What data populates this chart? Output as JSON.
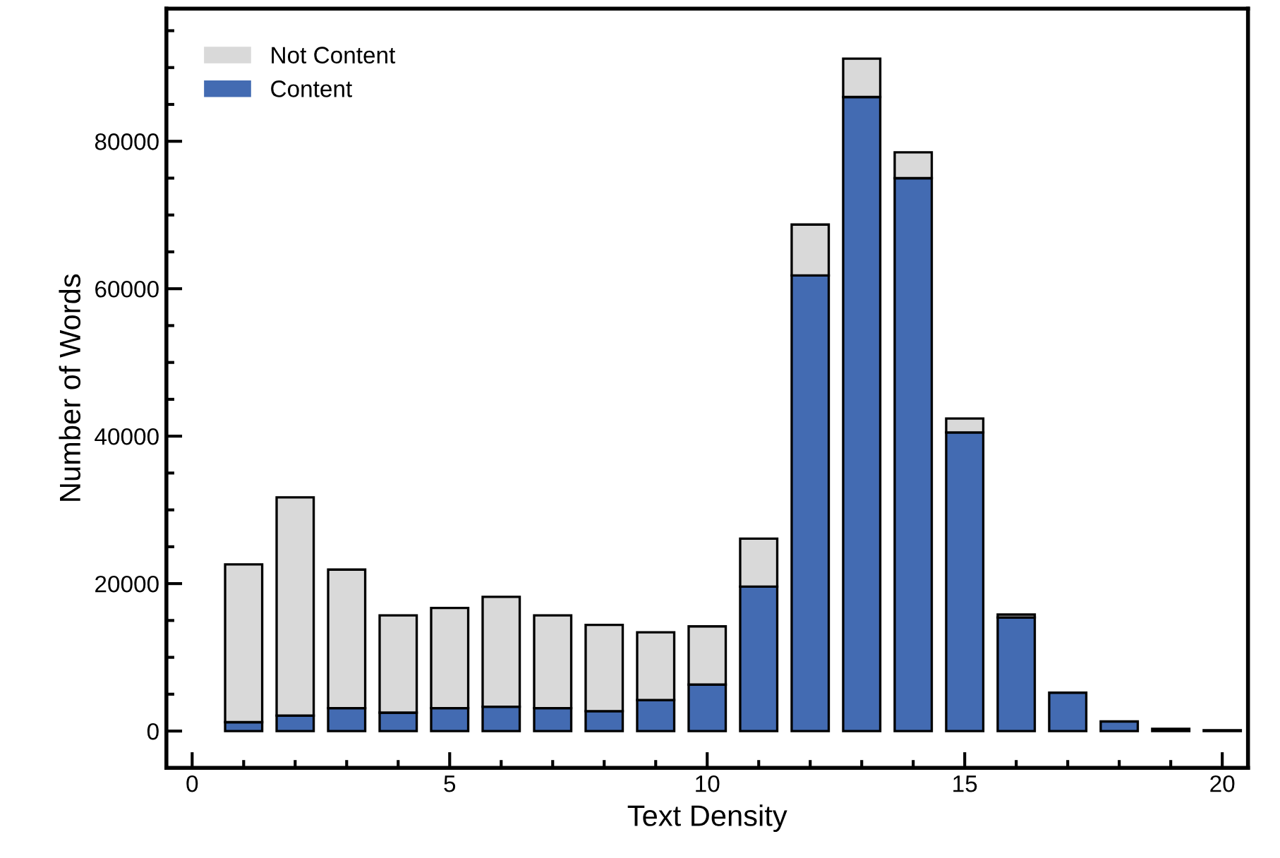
{
  "chart_data": {
    "type": "bar",
    "stacked": true,
    "xlabel": "Text Density",
    "ylabel": "Number of Words",
    "x": [
      1,
      2,
      3,
      4,
      5,
      6,
      7,
      8,
      9,
      10,
      11,
      12,
      13,
      14,
      15,
      16,
      17,
      18,
      19,
      20
    ],
    "series": [
      {
        "name": "Content",
        "color": "#436bb2",
        "values": [
          1200,
          2100,
          3100,
          2500,
          3100,
          3300,
          3100,
          2700,
          4200,
          6300,
          19600,
          61800,
          86000,
          75000,
          40500,
          15400,
          5200,
          1300,
          300,
          100
        ]
      },
      {
        "name": "Not Content",
        "color": "#d9d9d9",
        "values": [
          21400,
          29600,
          18800,
          13200,
          13600,
          14900,
          12600,
          11700,
          9200,
          7900,
          6500,
          6900,
          5200,
          3500,
          1900,
          400,
          0,
          0,
          0,
          0
        ]
      }
    ],
    "xlim": [
      -0.5,
      20.5
    ],
    "ylim": [
      -5000,
      98000
    ],
    "xticks": [
      0,
      {
        "value": 1,
        "label": null
      },
      {
        "value": 2,
        "label": null
      },
      {
        "value": 3,
        "label": null
      },
      {
        "value": 4,
        "label": null
      },
      5,
      {
        "value": 6,
        "label": null
      },
      {
        "value": 7,
        "label": null
      },
      {
        "value": 8,
        "label": null
      },
      {
        "value": 9,
        "label": null
      },
      10,
      {
        "value": 11,
        "label": null
      },
      {
        "value": 12,
        "label": null
      },
      {
        "value": 13,
        "label": null
      },
      {
        "value": 14,
        "label": null
      },
      15,
      {
        "value": 16,
        "label": null
      },
      {
        "value": 17,
        "label": null
      },
      {
        "value": 18,
        "label": null
      },
      {
        "value": 19,
        "label": null
      },
      20
    ],
    "yticks": [
      0,
      {
        "value": 5000,
        "label": null
      },
      {
        "value": 10000,
        "label": null
      },
      {
        "value": 15000,
        "label": null
      },
      20000,
      {
        "value": 25000,
        "label": null
      },
      {
        "value": 30000,
        "label": null
      },
      {
        "value": 35000,
        "label": null
      },
      40000,
      {
        "value": 45000,
        "label": null
      },
      {
        "value": 50000,
        "label": null
      },
      {
        "value": 55000,
        "label": null
      },
      60000,
      {
        "value": 65000,
        "label": null
      },
      {
        "value": 70000,
        "label": null
      },
      {
        "value": 75000,
        "label": null
      },
      80000,
      {
        "value": 85000,
        "label": null
      },
      {
        "value": 90000,
        "label": null
      },
      {
        "value": 95000,
        "label": null
      }
    ],
    "legend": "top left",
    "grid": false
  }
}
